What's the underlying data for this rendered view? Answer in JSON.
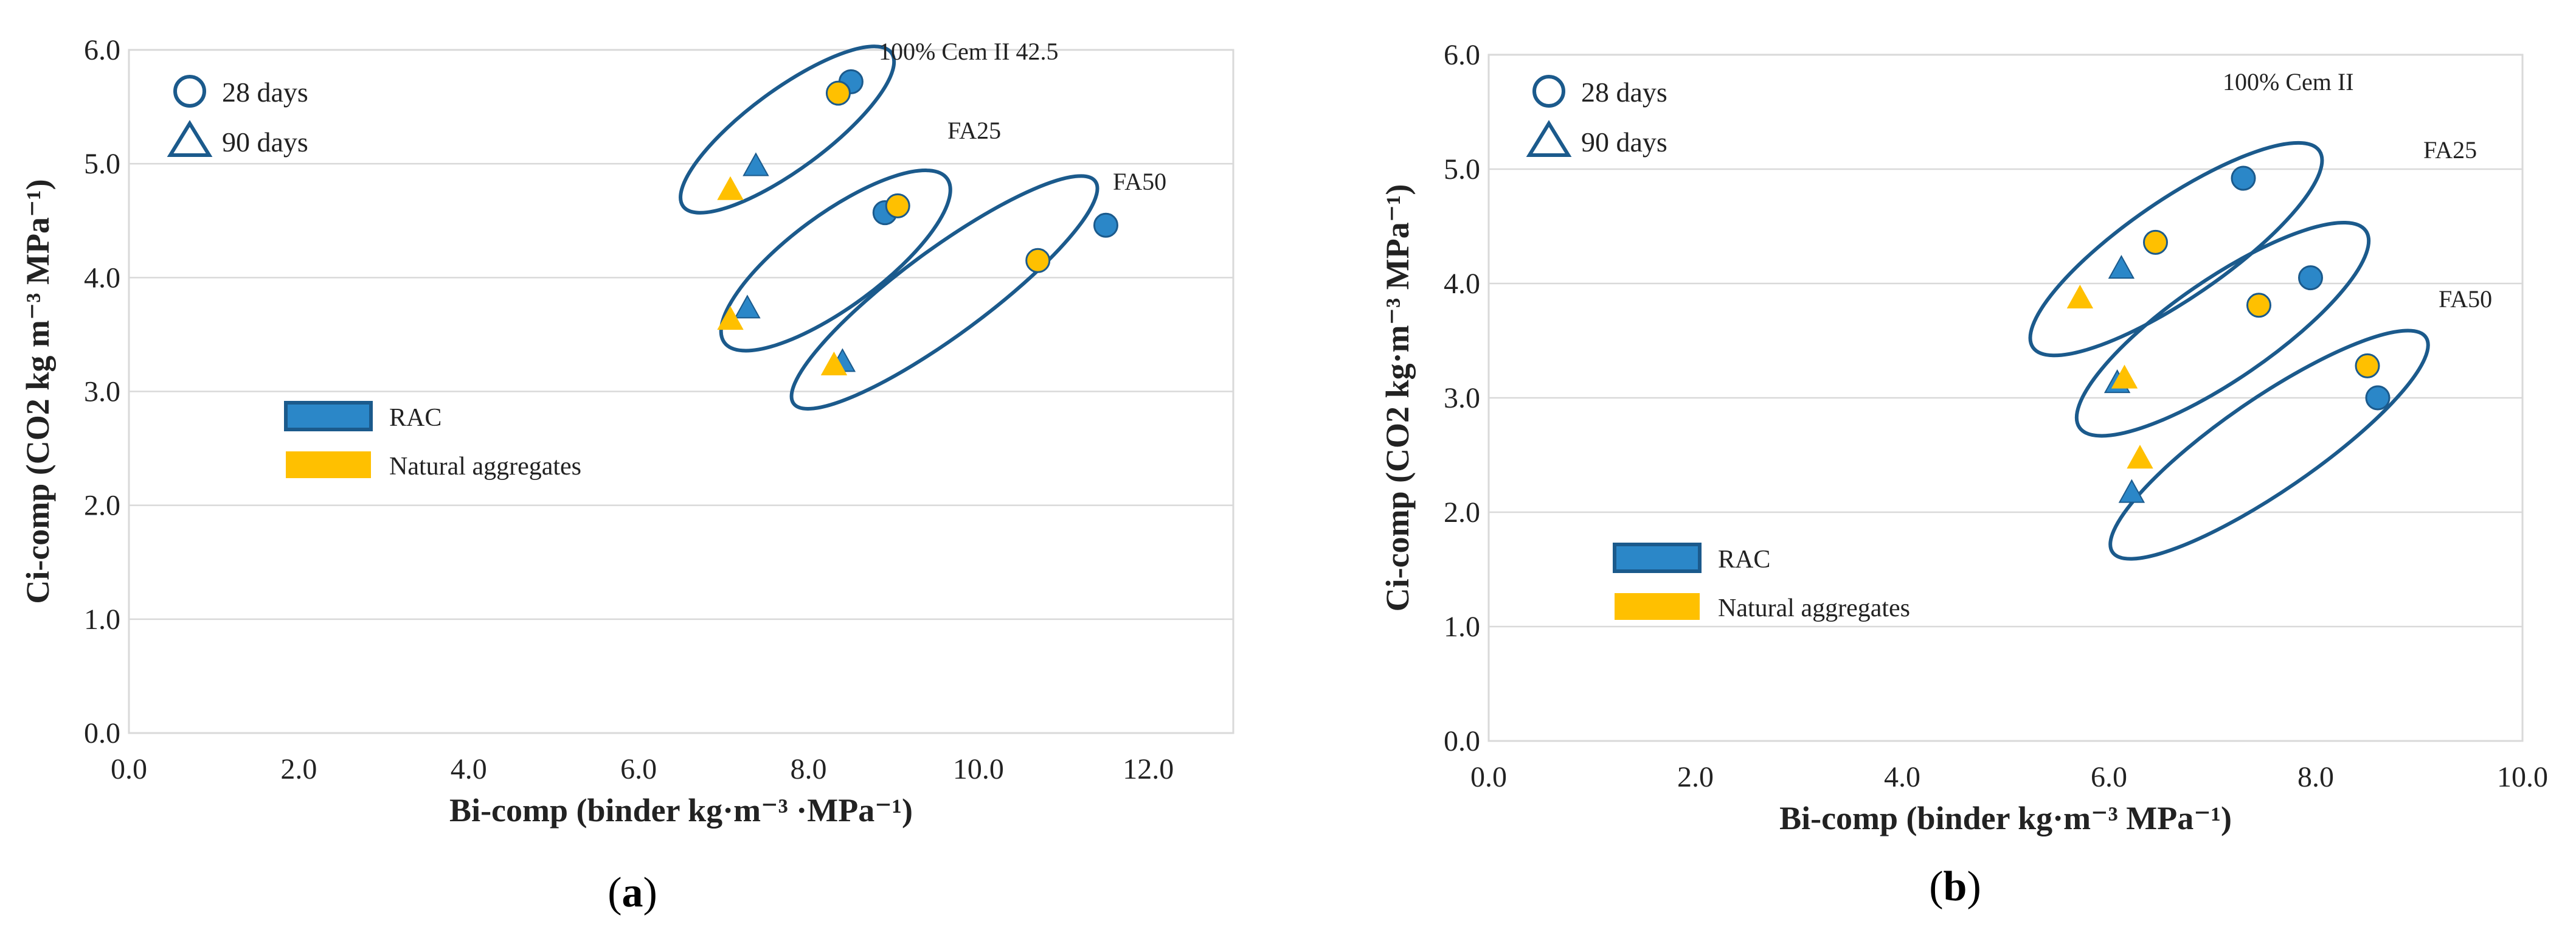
{
  "colors": {
    "rac": "#2b87c8",
    "natural": "#ffc000",
    "outline": "#1b5a8c",
    "grid": "#d9d9d9",
    "border": "#d9d9d9"
  },
  "chart_data": [
    {
      "type": "scatter",
      "panel_label": "a",
      "xlabel": "Bi-comp (binder kg·m⁻³ ·MPa⁻¹)",
      "ylabel": "Ci-comp (CO2 kg m⁻³ MPa⁻¹)",
      "xlim": [
        0,
        13
      ],
      "ylim": [
        0,
        6
      ],
      "xticks": [
        "0.0",
        "2.0",
        "4.0",
        "6.0",
        "8.0",
        "10.0",
        "12.0"
      ],
      "yticks": [
        "0.0",
        "1.0",
        "2.0",
        "3.0",
        "4.0",
        "5.0",
        "6.0"
      ],
      "grid": true,
      "marker_legend": [
        {
          "marker": "circle",
          "label": "28 days"
        },
        {
          "marker": "triangle",
          "label": "90 days"
        }
      ],
      "series_legend": [
        {
          "label": "RAC",
          "color": "rac"
        },
        {
          "label": "Natural aggregates",
          "color": "natural"
        }
      ],
      "series": [
        {
          "name": "RAC",
          "color": "rac",
          "points": [
            {
              "x": 8.5,
              "y": 5.72,
              "age": "28 days"
            },
            {
              "x": 7.38,
              "y": 4.97,
              "age": "90 days"
            },
            {
              "x": 8.9,
              "y": 4.57,
              "age": "28 days"
            },
            {
              "x": 7.28,
              "y": 3.72,
              "age": "90 days"
            },
            {
              "x": 11.5,
              "y": 4.46,
              "age": "28 days"
            },
            {
              "x": 8.4,
              "y": 3.25,
              "age": "90 days"
            }
          ]
        },
        {
          "name": "Natural aggregates",
          "color": "natural",
          "points": [
            {
              "x": 8.35,
              "y": 5.62,
              "age": "28 days"
            },
            {
              "x": 7.08,
              "y": 4.76,
              "age": "90 days"
            },
            {
              "x": 9.05,
              "y": 4.63,
              "age": "28 days"
            },
            {
              "x": 7.08,
              "y": 3.62,
              "age": "90 days"
            },
            {
              "x": 10.7,
              "y": 4.15,
              "age": "28 days"
            },
            {
              "x": 8.3,
              "y": 3.22,
              "age": "90 days"
            }
          ]
        }
      ],
      "groups": [
        {
          "label": "100% Cem II 42.5",
          "ellipse": {
            "cx": 7.75,
            "cy": 5.3,
            "rx": 1.45,
            "ry": 0.42
          }
        },
        {
          "label": "FA25",
          "ellipse": {
            "cx": 8.32,
            "cy": 4.15,
            "rx": 1.55,
            "ry": 0.55
          }
        },
        {
          "label": "FA50",
          "ellipse": {
            "cx": 9.6,
            "cy": 3.87,
            "rx": 2.1,
            "ry": 0.48
          }
        }
      ]
    },
    {
      "type": "scatter",
      "panel_label": "b",
      "xlabel": "Bi-comp (binder kg·m⁻³ MPa⁻¹)",
      "ylabel": "Ci-comp (CO2 kg·m⁻³ MPa⁻¹)",
      "xlim": [
        0,
        10
      ],
      "ylim": [
        0,
        6
      ],
      "xticks": [
        "0.0",
        "2.0",
        "4.0",
        "6.0",
        "8.0",
        "10.0"
      ],
      "yticks": [
        "0.0",
        "1.0",
        "2.0",
        "3.0",
        "4.0",
        "5.0",
        "6.0"
      ],
      "grid": true,
      "marker_legend": [
        {
          "marker": "circle",
          "label": "28 days"
        },
        {
          "marker": "triangle",
          "label": "90 days"
        }
      ],
      "series_legend": [
        {
          "label": "RAC",
          "color": "rac"
        },
        {
          "label": "Natural aggregates",
          "color": "natural"
        }
      ],
      "series": [
        {
          "name": "RAC",
          "color": "rac",
          "points": [
            {
              "x": 7.3,
              "y": 4.92,
              "age": "28 days"
            },
            {
              "x": 6.12,
              "y": 4.12,
              "age": "90 days"
            },
            {
              "x": 7.95,
              "y": 4.05,
              "age": "28 days"
            },
            {
              "x": 6.08,
              "y": 3.12,
              "age": "90 days"
            },
            {
              "x": 8.6,
              "y": 3.0,
              "age": "28 days"
            },
            {
              "x": 6.22,
              "y": 2.16,
              "age": "90 days"
            }
          ]
        },
        {
          "name": "Natural aggregates",
          "color": "natural",
          "points": [
            {
              "x": 6.45,
              "y": 4.36,
              "age": "28 days"
            },
            {
              "x": 5.72,
              "y": 3.86,
              "age": "90 days"
            },
            {
              "x": 7.45,
              "y": 3.81,
              "age": "28 days"
            },
            {
              "x": 6.15,
              "y": 3.16,
              "age": "90 days"
            },
            {
              "x": 8.5,
              "y": 3.28,
              "age": "28 days"
            },
            {
              "x": 6.3,
              "y": 2.46,
              "age": "90 days"
            }
          ]
        }
      ],
      "groups": [
        {
          "label": "100%  Cem II",
          "ellipse": {
            "cx": 6.65,
            "cy": 4.3,
            "rx": 1.6,
            "ry": 0.6
          }
        },
        {
          "label": "FA25",
          "ellipse": {
            "cx": 7.1,
            "cy": 3.6,
            "rx": 1.6,
            "ry": 0.62
          }
        },
        {
          "label": "FA50",
          "ellipse": {
            "cx": 7.55,
            "cy": 2.59,
            "rx": 1.75,
            "ry": 0.55
          }
        }
      ]
    }
  ]
}
